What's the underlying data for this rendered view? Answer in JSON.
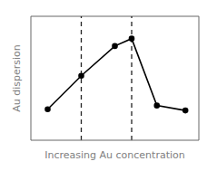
{
  "chart_data": {
    "type": "line",
    "xlabel": "Increasing Au concentration",
    "ylabel": "Au dispersion",
    "x": [
      0.1,
      0.3,
      0.5,
      0.6,
      0.75,
      0.92
    ],
    "values": [
      0.25,
      0.52,
      0.76,
      0.82,
      0.28,
      0.24
    ],
    "color": "#000000",
    "marker": "circle",
    "xlim": [
      0,
      1
    ],
    "ylim": [
      0,
      1
    ],
    "xticks": [],
    "yticks": [],
    "tick_labels": false,
    "grid": false,
    "vertical_lines": {
      "x": [
        0.3,
        0.6
      ],
      "color": "#222222",
      "line_style": "dashed"
    }
  }
}
